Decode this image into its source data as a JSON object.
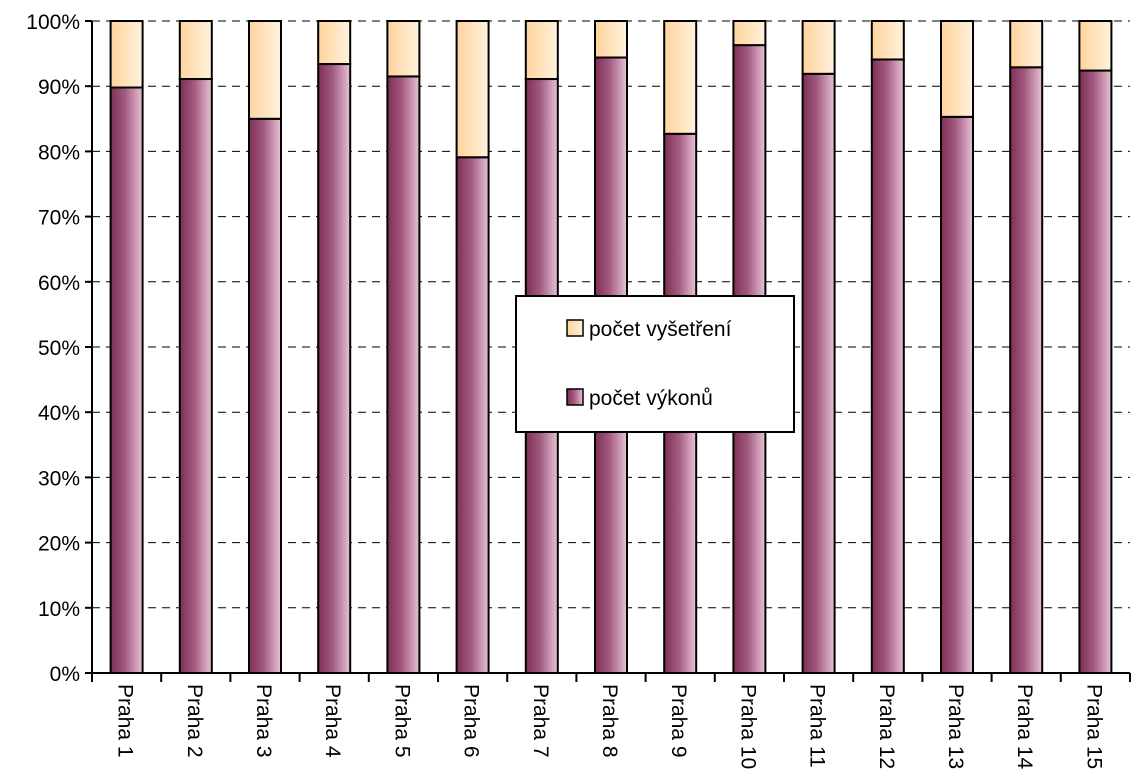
{
  "chart_data": {
    "type": "bar",
    "stacked": "percent",
    "categories": [
      "Praha 1",
      "Praha 2",
      "Praha 3",
      "Praha 4",
      "Praha 5",
      "Praha 6",
      "Praha 7",
      "Praha 8",
      "Praha 9",
      "Praha 10",
      "Praha 11",
      "Praha 12",
      "Praha 13",
      "Praha 14",
      "Praha 15"
    ],
    "series": [
      {
        "name": "počet výkonů",
        "color": "#9e4a72",
        "values": [
          89.8,
          91.1,
          85.0,
          93.4,
          91.5,
          79.1,
          91.1,
          94.4,
          82.7,
          96.3,
          91.9,
          94.1,
          85.3,
          92.9,
          92.4
        ]
      },
      {
        "name": "počet vyšetření",
        "color": "#ffd9a8",
        "values": [
          10.2,
          8.9,
          15.0,
          6.6,
          8.5,
          20.9,
          8.9,
          5.6,
          17.3,
          3.7,
          8.1,
          5.9,
          14.7,
          7.1,
          7.6
        ]
      }
    ],
    "y_ticks": [
      "0%",
      "10%",
      "20%",
      "30%",
      "40%",
      "50%",
      "60%",
      "70%",
      "80%",
      "90%",
      "100%"
    ],
    "ylim": [
      0,
      100
    ],
    "grid": true,
    "grid_style": "dashed",
    "legend_position": "center",
    "legend_order": [
      "počet vyšetření",
      "počet výkonů"
    ]
  }
}
